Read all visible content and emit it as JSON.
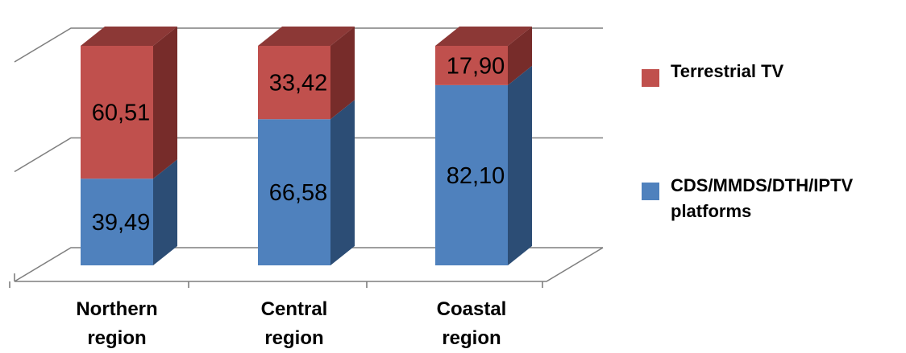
{
  "colors": {
    "blue": "#4f81bd",
    "blue_side": "#2c4d75",
    "blue_top": "#3f6aa0",
    "red": "#c0504d",
    "red_side": "#772c2a",
    "red_top": "#8c3836",
    "grid": "#7f7f7f",
    "text": "#000000"
  },
  "chart_data": {
    "type": "bar",
    "stacked": true,
    "three_d": true,
    "categories": [
      "Northern region",
      "Central region",
      "Coastal region"
    ],
    "series": [
      {
        "name": "CDS/MMDS/DTH/IPTV platforms",
        "values": [
          39.49,
          66.58,
          82.1
        ],
        "labels": [
          "39,49",
          "66,58",
          "82,10"
        ],
        "color": "#4f81bd"
      },
      {
        "name": "Terrestrial TV",
        "values": [
          60.51,
          33.42,
          17.9
        ],
        "labels": [
          "60,51",
          "33,42",
          "17,90"
        ],
        "color": "#c0504d"
      }
    ],
    "ylim": [
      0,
      100
    ],
    "grid": true,
    "legend_position": "right",
    "legend_order": [
      "Terrestrial TV",
      "CDS/MMDS/DTH/IPTV platforms"
    ],
    "legend_lines": [
      [
        "Terrestrial TV"
      ],
      [
        "CDS/MMDS/DTH/IPTV",
        "platforms"
      ]
    ]
  }
}
